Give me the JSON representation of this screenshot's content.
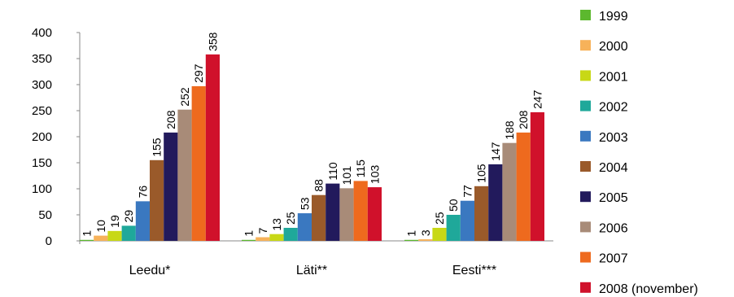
{
  "chart_data": {
    "type": "bar",
    "categories": [
      "Leedu*",
      "Läti**",
      "Eesti***"
    ],
    "ylim": [
      0,
      400
    ],
    "yticks": [
      0,
      50,
      100,
      150,
      200,
      250,
      300,
      350,
      400
    ],
    "grid": false,
    "legend_placement": "right",
    "title": "",
    "xlabel": "",
    "ylabel": "",
    "series": [
      {
        "name": "1999",
        "color": "#5cb82e",
        "values": [
          1,
          1,
          1
        ]
      },
      {
        "name": "2000",
        "color": "#f7b25a",
        "values": [
          10,
          7,
          3
        ]
      },
      {
        "name": "2001",
        "color": "#c8d816",
        "values": [
          19,
          13,
          25
        ]
      },
      {
        "name": "2002",
        "color": "#1fa89a",
        "values": [
          29,
          25,
          50
        ]
      },
      {
        "name": "2003",
        "color": "#3a78c0",
        "values": [
          76,
          53,
          77
        ]
      },
      {
        "name": "2004",
        "color": "#9a5a2a",
        "values": [
          155,
          88,
          105
        ]
      },
      {
        "name": "2005",
        "color": "#221a5c",
        "values": [
          208,
          110,
          147
        ]
      },
      {
        "name": "2006",
        "color": "#a88b78",
        "values": [
          252,
          101,
          188
        ]
      },
      {
        "name": "2007",
        "color": "#ee6a1e",
        "values": [
          297,
          115,
          208
        ]
      },
      {
        "name": "2008 (november)",
        "color": "#d0112b",
        "values": [
          358,
          103,
          247
        ]
      }
    ]
  }
}
